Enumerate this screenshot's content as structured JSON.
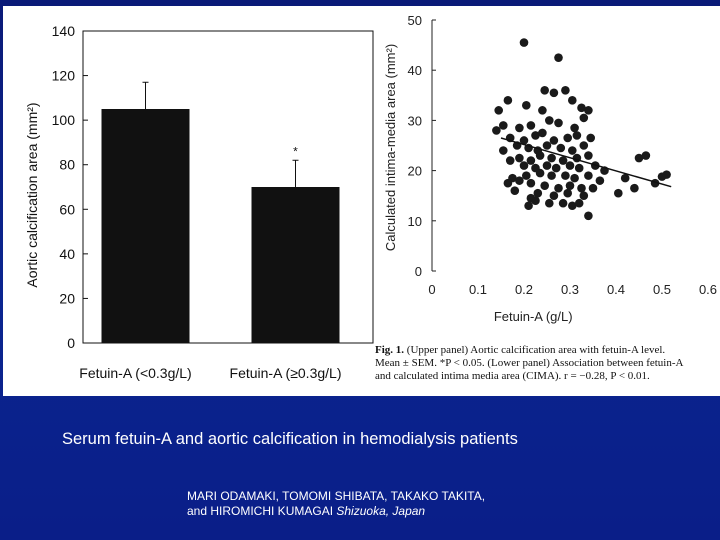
{
  "slide": {
    "title": "Serum fetuin-A and aortic calcification in hemodialysis patients",
    "authors_line1": "MARI ODAMAKI, TOMOMI SHIBATA, TAKAKO TAKITA,",
    "authors_line2": "and HIROMICHI KUMAGAI",
    "location": "Shizuoka, Japan"
  },
  "caption": {
    "label": "Fig. 1.",
    "line1_rest": "(Upper panel) Aortic calcification area with fetuin-A level.",
    "line2": "Mean ± SEM. *P < 0.05. (Lower panel) Association between fetuin-A",
    "line3": "and calculated intima media area (CIMA). r = −0.28, P < 0.01."
  },
  "colors": {
    "background": "#0b2590",
    "figure": "#ffffff",
    "bar": "#111111",
    "text": "#ffffff"
  },
  "chart_data": [
    {
      "type": "bar",
      "categories": [
        "Fetuin-A (<0.3g/L)",
        "Fetuin-A (≥0.3g/L)"
      ],
      "values": [
        105,
        70
      ],
      "error": [
        12,
        12
      ],
      "significance": [
        "",
        "*"
      ],
      "ylabel": "Aortic calcification area (mm²)",
      "ylim": [
        0,
        140
      ],
      "yticks": [
        0,
        20,
        40,
        60,
        80,
        100,
        120,
        140
      ]
    },
    {
      "type": "scatter",
      "xlabel": "Fetuin-A (g/L)",
      "ylabel": "Calculated intima-media area (mm²)",
      "xlim": [
        0,
        0.6
      ],
      "ylim": [
        0,
        50
      ],
      "xticks": [
        0,
        0.1,
        0.2,
        0.3,
        0.4,
        0.5,
        0.6
      ],
      "yticks": [
        0,
        10,
        20,
        30,
        40,
        50
      ],
      "trendline": {
        "x": [
          0.15,
          0.52
        ],
        "y": [
          26.5,
          16.8
        ]
      },
      "points": [
        [
          0.2,
          45.5
        ],
        [
          0.275,
          42.5
        ],
        [
          0.165,
          34
        ],
        [
          0.145,
          32
        ],
        [
          0.205,
          33
        ],
        [
          0.245,
          36
        ],
        [
          0.24,
          32
        ],
        [
          0.265,
          35.5
        ],
        [
          0.29,
          36
        ],
        [
          0.305,
          34
        ],
        [
          0.325,
          32.5
        ],
        [
          0.34,
          32
        ],
        [
          0.155,
          29
        ],
        [
          0.19,
          28.5
        ],
        [
          0.215,
          29
        ],
        [
          0.255,
          30
        ],
        [
          0.275,
          29.5
        ],
        [
          0.31,
          28.5
        ],
        [
          0.33,
          30.5
        ],
        [
          0.14,
          28
        ],
        [
          0.17,
          26.5
        ],
        [
          0.2,
          26
        ],
        [
          0.225,
          27
        ],
        [
          0.24,
          27.5
        ],
        [
          0.265,
          26
        ],
        [
          0.295,
          26.5
        ],
        [
          0.315,
          27
        ],
        [
          0.345,
          26.5
        ],
        [
          0.185,
          25
        ],
        [
          0.21,
          24.5
        ],
        [
          0.23,
          24
        ],
        [
          0.25,
          25
        ],
        [
          0.28,
          24.5
        ],
        [
          0.305,
          24
        ],
        [
          0.155,
          24
        ],
        [
          0.33,
          25
        ],
        [
          0.19,
          22.5
        ],
        [
          0.215,
          22
        ],
        [
          0.235,
          23
        ],
        [
          0.26,
          22.5
        ],
        [
          0.285,
          22
        ],
        [
          0.315,
          22.5
        ],
        [
          0.34,
          23
        ],
        [
          0.17,
          22
        ],
        [
          0.2,
          21
        ],
        [
          0.225,
          20.5
        ],
        [
          0.25,
          21
        ],
        [
          0.27,
          20.5
        ],
        [
          0.3,
          21
        ],
        [
          0.32,
          20.5
        ],
        [
          0.355,
          21
        ],
        [
          0.375,
          20
        ],
        [
          0.45,
          22.5
        ],
        [
          0.465,
          23
        ],
        [
          0.175,
          18.5
        ],
        [
          0.205,
          19
        ],
        [
          0.235,
          19.5
        ],
        [
          0.26,
          19
        ],
        [
          0.29,
          19
        ],
        [
          0.31,
          18.5
        ],
        [
          0.34,
          19
        ],
        [
          0.365,
          18
        ],
        [
          0.19,
          18
        ],
        [
          0.42,
          18.5
        ],
        [
          0.5,
          18.8
        ],
        [
          0.51,
          19.2
        ],
        [
          0.485,
          17.5
        ],
        [
          0.215,
          17.5
        ],
        [
          0.245,
          17
        ],
        [
          0.275,
          16.5
        ],
        [
          0.3,
          17
        ],
        [
          0.325,
          16.5
        ],
        [
          0.35,
          16.5
        ],
        [
          0.23,
          15.5
        ],
        [
          0.265,
          15
        ],
        [
          0.295,
          15.5
        ],
        [
          0.33,
          15
        ],
        [
          0.405,
          15.5
        ],
        [
          0.44,
          16.5
        ],
        [
          0.225,
          14
        ],
        [
          0.255,
          13.5
        ],
        [
          0.285,
          13.5
        ],
        [
          0.305,
          13
        ],
        [
          0.21,
          13
        ],
        [
          0.32,
          13.5
        ],
        [
          0.34,
          11
        ],
        [
          0.165,
          17.5
        ],
        [
          0.18,
          16
        ],
        [
          0.215,
          14.5
        ]
      ]
    }
  ]
}
